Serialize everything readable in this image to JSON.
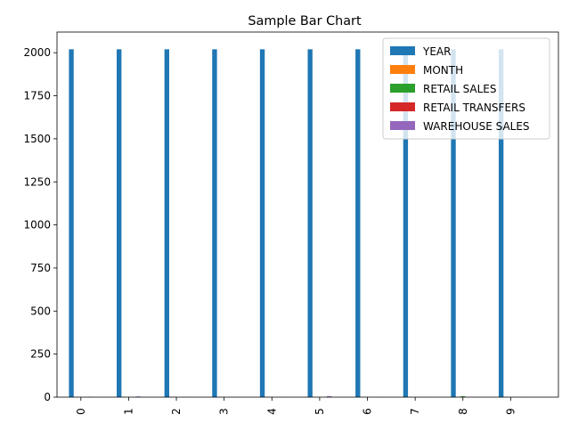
{
  "chart_data": {
    "type": "bar",
    "title": "Sample Bar Chart",
    "xlabel": "",
    "ylabel": "",
    "categories": [
      "0",
      "1",
      "2",
      "3",
      "4",
      "5",
      "6",
      "7",
      "8",
      "9"
    ],
    "ylim": [
      0,
      2120
    ],
    "yticks": [
      0,
      250,
      500,
      750,
      1000,
      1250,
      1500,
      1750,
      2000
    ],
    "ytick_labels": [
      "0",
      "250",
      "500",
      "750",
      "1000",
      "1250",
      "1500",
      "1750",
      "2000"
    ],
    "grid": false,
    "legend_position": "top-right",
    "series": [
      {
        "name": "YEAR",
        "color": "#1f77b4",
        "values": [
          2020,
          2020,
          2020,
          2020,
          2020,
          2020,
          2020,
          2020,
          2020,
          2020
        ]
      },
      {
        "name": "MONTH",
        "color": "#ff7f0e",
        "values": [
          1,
          1,
          1,
          1,
          1,
          1,
          1,
          1,
          1,
          1
        ]
      },
      {
        "name": "RETAIL SALES",
        "color": "#2ca02c",
        "values": [
          0,
          0.8,
          0,
          0,
          0,
          0,
          0.2,
          0,
          5,
          0
        ]
      },
      {
        "name": "RETAIL TRANSFERS",
        "color": "#d62728",
        "values": [
          0,
          0,
          0,
          0,
          0,
          0,
          0,
          0,
          0,
          0
        ]
      },
      {
        "name": "WAREHOUSE SALES",
        "color": "#9467bd",
        "values": [
          2,
          4,
          1,
          1,
          1,
          6,
          1,
          1,
          1,
          1
        ]
      }
    ]
  }
}
